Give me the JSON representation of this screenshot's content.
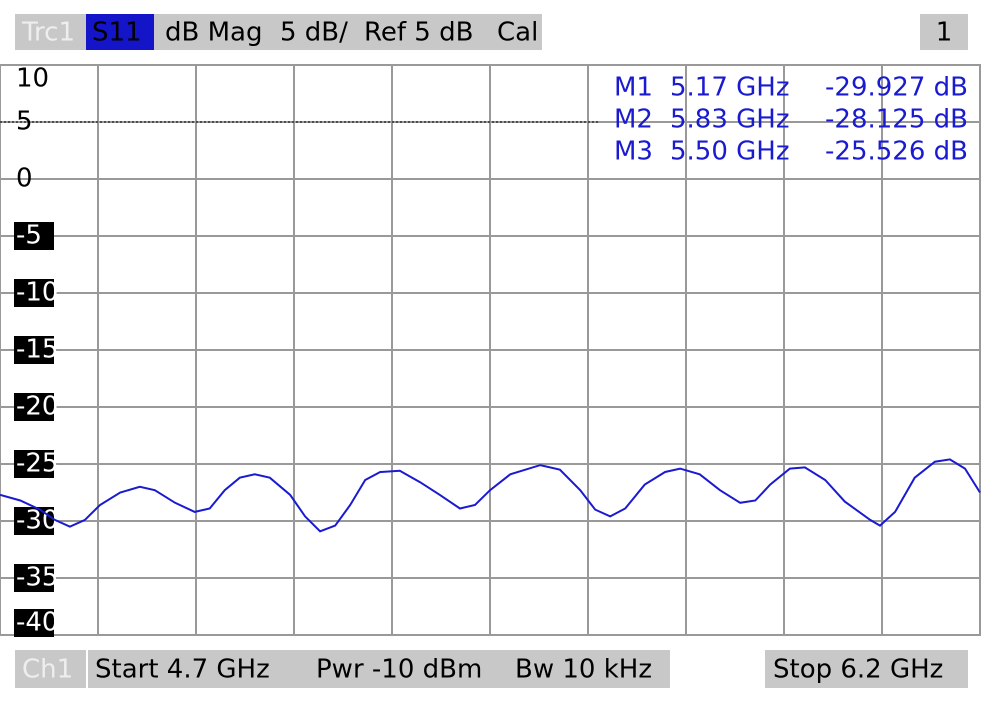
{
  "header": {
    "trace": "Trc1",
    "parameter": "S11",
    "format": "dB Mag",
    "scale": "5 dB/",
    "reference": "Ref 5 dB",
    "calibration": "Cal",
    "window": "1"
  },
  "footer": {
    "channel": "Ch1",
    "start": "Start 4.7 GHz",
    "power": "Pwr -10 dBm",
    "bandwidth": "Bw 10 kHz",
    "stop": "Stop 6.2 GHz"
  },
  "markers": [
    {
      "name": "M1",
      "frequency": "5.17 GHz",
      "value": "-29.927 dB"
    },
    {
      "name": "M2",
      "frequency": "5.83 GHz",
      "value": "-28.125 dB"
    },
    {
      "name": "M3",
      "frequency": "5.50 GHz",
      "value": "-25.526 dB"
    }
  ],
  "chart_data": {
    "type": "line",
    "x": [
      4.7,
      4.731,
      4.761,
      4.784,
      4.807,
      4.83,
      4.853,
      4.884,
      4.914,
      4.937,
      4.968,
      4.998,
      5.021,
      5.044,
      5.067,
      5.09,
      5.113,
      5.144,
      5.167,
      5.19,
      5.213,
      5.236,
      5.259,
      5.282,
      5.312,
      5.343,
      5.373,
      5.404,
      5.427,
      5.45,
      5.481,
      5.527,
      5.557,
      5.588,
      5.611,
      5.634,
      5.657,
      5.687,
      5.718,
      5.741,
      5.771,
      5.802,
      5.833,
      5.856,
      5.879,
      5.909,
      5.932,
      5.963,
      5.993,
      6.032,
      6.047,
      6.07,
      6.1,
      6.131,
      6.154,
      6.177,
      6.2
    ],
    "series": [
      {
        "name": "S11",
        "color": "#1a1ad0",
        "values": [
          -27.7,
          -28.2,
          -29.0,
          -29.9,
          -30.5,
          -29.9,
          -28.6,
          -27.5,
          -27.0,
          -27.3,
          -28.4,
          -29.2,
          -28.9,
          -27.3,
          -26.2,
          -25.9,
          -26.2,
          -27.7,
          -29.6,
          -30.9,
          -30.4,
          -28.6,
          -26.4,
          -25.7,
          -25.6,
          -26.6,
          -27.7,
          -28.9,
          -28.6,
          -27.3,
          -25.9,
          -25.1,
          -25.5,
          -27.3,
          -29.0,
          -29.6,
          -28.9,
          -26.8,
          -25.7,
          -25.4,
          -25.9,
          -27.3,
          -28.4,
          -28.2,
          -26.8,
          -25.4,
          -25.3,
          -26.4,
          -28.3,
          -29.9,
          -30.4,
          -29.2,
          -26.2,
          -24.8,
          -24.6,
          -25.4,
          -27.5
        ]
      }
    ],
    "xlim": [
      4.7,
      6.2
    ],
    "xticks": [
      4.7,
      4.85,
      5.0,
      5.15,
      5.3,
      5.45,
      5.6,
      5.75,
      5.9,
      6.05,
      6.2
    ],
    "ylim": [
      -40,
      10
    ],
    "yticks": [
      10,
      5,
      0,
      -5,
      -10,
      -15,
      -20,
      -25,
      -30,
      -35,
      -40
    ],
    "reference_level": 5,
    "grid": true
  }
}
